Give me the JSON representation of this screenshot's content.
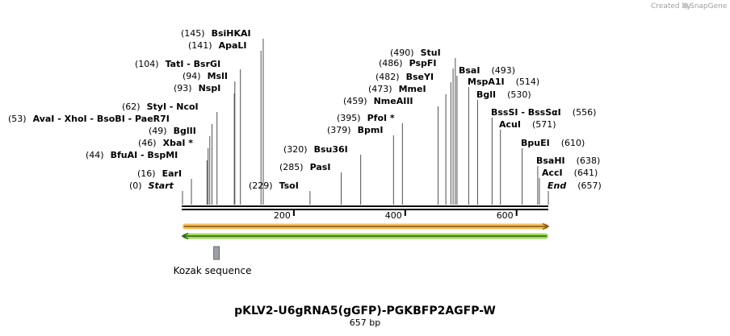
{
  "credit": {
    "text": "Created by",
    "brand": "SnapGene"
  },
  "sequence": {
    "name": "pKLV2-U6gRNA5(gGFP)-PGKBFP2AGFP-W",
    "length_label": "657 bp",
    "length": 657,
    "start": 0,
    "end": 657
  },
  "ruler": {
    "ticks": [
      200,
      400,
      600
    ]
  },
  "enzymes": [
    {
      "id": "start",
      "label": "Start",
      "pos": 0,
      "pos_text": "(0)",
      "italic": true
    },
    {
      "id": "eari",
      "label": "EarI",
      "pos": 16,
      "pos_text": "(16)"
    },
    {
      "id": "bfuai",
      "label": "BfuAI",
      "pos": 44,
      "pos_text": "(44)",
      "extra": [
        "BspMI"
      ]
    },
    {
      "id": "xbai",
      "label": "XbaI",
      "pos": 46,
      "pos_text": "(46)",
      "star": true
    },
    {
      "id": "bglii",
      "label": "BglII",
      "pos": 49,
      "pos_text": "(49)"
    },
    {
      "id": "avai",
      "label": "AvaI",
      "pos": 53,
      "pos_text": "(53)",
      "extra": [
        "XhoI",
        "BsoBI",
        "PaeR7I"
      ]
    },
    {
      "id": "styi",
      "label": "StyI",
      "pos": 62,
      "pos_text": "(62)",
      "extra": [
        "NcoI"
      ]
    },
    {
      "id": "nspi",
      "label": "NspI",
      "pos": 93,
      "pos_text": "(93)"
    },
    {
      "id": "msli",
      "label": "MslI",
      "pos": 94,
      "pos_text": "(94)"
    },
    {
      "id": "tati",
      "label": "TatI",
      "pos": 104,
      "pos_text": "(104)",
      "extra": [
        "BsrGI"
      ]
    },
    {
      "id": "apali",
      "label": "ApaLI",
      "pos": 141,
      "pos_text": "(141)"
    },
    {
      "id": "bsihkai",
      "label": "BsiHKAI",
      "pos": 145,
      "pos_text": "(145)"
    },
    {
      "id": "tsoi",
      "label": "TsoI",
      "pos": 229,
      "pos_text": "(229)"
    },
    {
      "id": "pasi",
      "label": "PasI",
      "pos": 285,
      "pos_text": "(285)"
    },
    {
      "id": "bsu36i",
      "label": "Bsu36I",
      "pos": 320,
      "pos_text": "(320)"
    },
    {
      "id": "bpmi",
      "label": "BpmI",
      "pos": 379,
      "pos_text": "(379)"
    },
    {
      "id": "pfoi",
      "label": "PfoI",
      "pos": 395,
      "pos_text": "(395)",
      "star": true
    },
    {
      "id": "nmeaiii",
      "label": "NmeAIII",
      "pos": 459,
      "pos_text": "(459)"
    },
    {
      "id": "mmei",
      "label": "MmeI",
      "pos": 473,
      "pos_text": "(473)"
    },
    {
      "id": "bseyi",
      "label": "BseYI",
      "pos": 482,
      "pos_text": "(482)"
    },
    {
      "id": "pspfi",
      "label": "PspFI",
      "pos": 486,
      "pos_text": "(486)"
    },
    {
      "id": "stui",
      "label": "StuI",
      "pos": 490,
      "pos_text": "(490)"
    },
    {
      "id": "bsai",
      "label": "BsaI",
      "pos": 493,
      "pos_text": "(493)"
    },
    {
      "id": "mspa1i",
      "label": "MspA1I",
      "pos": 514,
      "pos_text": "(514)"
    },
    {
      "id": "bgli",
      "label": "BglI",
      "pos": 530,
      "pos_text": "(530)"
    },
    {
      "id": "bsssi",
      "label": "BssSI",
      "pos": 556,
      "pos_text": "(556)",
      "extra": [
        "BssSαI"
      ]
    },
    {
      "id": "acui",
      "label": "AcuI",
      "pos": 571,
      "pos_text": "(571)"
    },
    {
      "id": "bpuei",
      "label": "BpuEI",
      "pos": 610,
      "pos_text": "(610)"
    },
    {
      "id": "bsahi",
      "label": "BsaHI",
      "pos": 638,
      "pos_text": "(638)"
    },
    {
      "id": "acci",
      "label": "AccI",
      "pos": 641,
      "pos_text": "(641)"
    },
    {
      "id": "end",
      "label": "End",
      "pos": 657,
      "pos_text": "(657)",
      "italic": true
    }
  ],
  "features": [
    {
      "id": "orange-arrow",
      "type": "arrow",
      "direction": "forward",
      "start": 0,
      "end": 657,
      "color": "#f5a623",
      "core": "#7a5a1a"
    },
    {
      "id": "green-arrow",
      "type": "arrow",
      "direction": "reverse",
      "start": 0,
      "end": 657,
      "color": "#7ed321",
      "core": "#2f5a17"
    },
    {
      "id": "kozak",
      "type": "box",
      "start": 56,
      "end": 66,
      "label": "Kozak sequence",
      "color": "#9aa0a6"
    }
  ]
}
